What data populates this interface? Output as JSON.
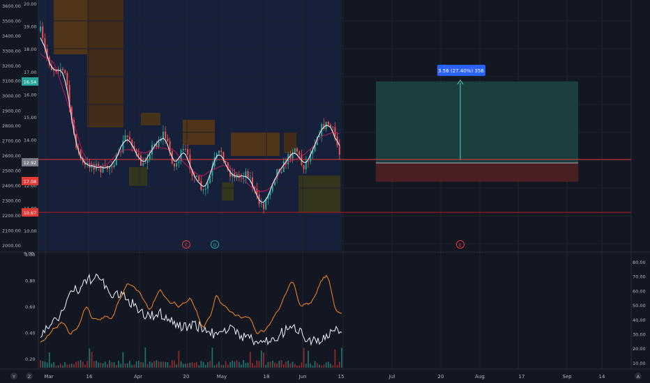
{
  "main_pane": {
    "left_axis_ticks": [
      "3600.00",
      "3500.00",
      "3400.00",
      "3300.00",
      "3200.00",
      "3100.00",
      "3000.00",
      "2900.00",
      "2800.00",
      "2700.00",
      "2600.00",
      "2500.00",
      "2400.00",
      "2300.00",
      "2200.00",
      "2100.00",
      "2000.00"
    ],
    "right_axis_ticks": [
      "20.00",
      "19.00",
      "18.00",
      "17.00",
      "16.00",
      "15.00",
      "14.00",
      "13.00",
      "12.00",
      "11.00",
      "10.00",
      "9.00"
    ],
    "price_badges": [
      {
        "text": "16.54",
        "color": "#26a69a"
      },
      {
        "text": "12.92",
        "color": "#787b86"
      },
      {
        "text": "17.08",
        "color": "#e53935"
      },
      {
        "text": "10.67",
        "color": "#e53935"
      }
    ],
    "event_markers": [
      "E",
      "D",
      "E"
    ],
    "position_label": "3.56 (27.40%) 356"
  },
  "lower_pane": {
    "left_axis_ticks": [
      "1.00",
      "0.80",
      "0.60",
      "0.40",
      "0.20"
    ],
    "right_axis_ticks": [
      "80.00",
      "70.00",
      "60.00",
      "50.00",
      "40.00",
      "30.00",
      "20.00",
      "10.00"
    ]
  },
  "time_axis": {
    "corner_left_labels": [
      "Y",
      "Z"
    ],
    "labels": [
      "Mar",
      "16",
      "Apr",
      "20",
      "May",
      "18",
      "Jun",
      "15",
      "Jul",
      "20",
      "Aug",
      "17",
      "Sep",
      "14"
    ],
    "corner_right_label": "A"
  },
  "colors": {
    "background": "#131722",
    "candle_up": "#26a69a",
    "candle_down": "#ef5350",
    "ma_white": "#e0e3eb",
    "ma_pink": "#c2185b",
    "orange_line": "#e67e22",
    "position_target": "#1b3f3f",
    "position_stop": "#4a1f22",
    "label_blue": "#2962ff"
  }
}
